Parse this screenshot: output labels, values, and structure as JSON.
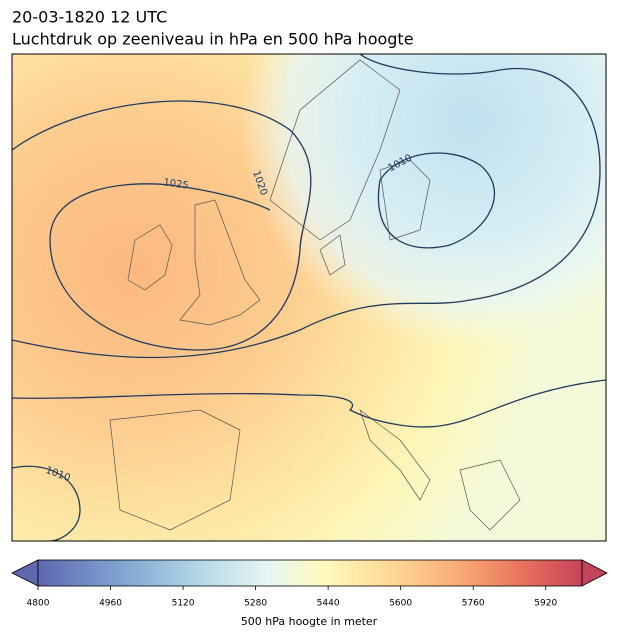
{
  "map": {
    "title": "20-03-1820 12 UTC",
    "subtitle": "Luchtdruk op zeeniveau in hPa en 500 hPa hoogte",
    "contour_labels": [
      "1025",
      "1020",
      "1010",
      "1010"
    ],
    "colorbar": {
      "label": "500 hPa hoogte in meter",
      "range": [
        4800,
        6000
      ],
      "ticks": [
        4800,
        4960,
        5120,
        5280,
        5440,
        5600,
        5760,
        5920
      ]
    }
  }
}
